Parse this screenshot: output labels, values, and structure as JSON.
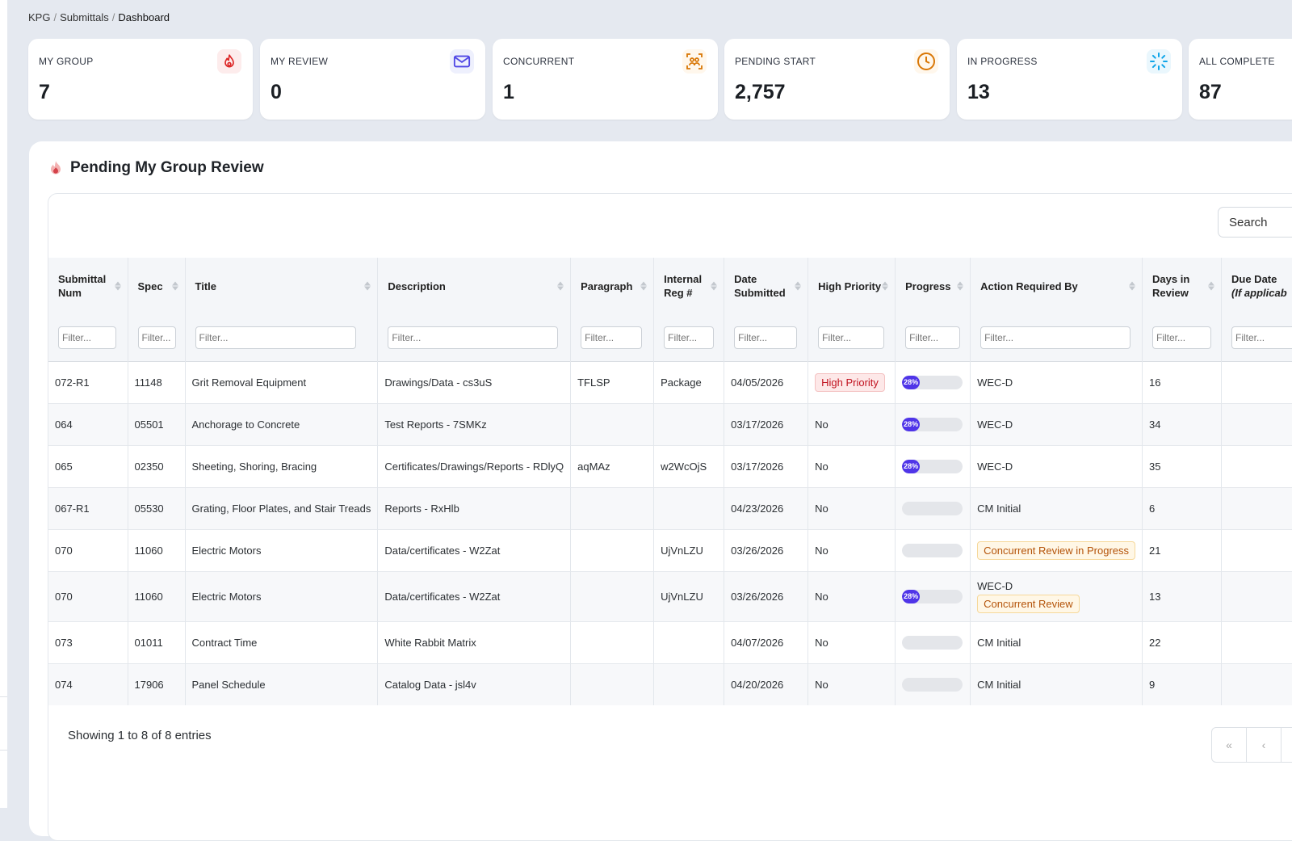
{
  "breadcrumb": [
    "KPG",
    "Submittals",
    "Dashboard"
  ],
  "stats": [
    {
      "label": "MY GROUP",
      "value": "7",
      "icon": "fire-icon",
      "color": "#dc2626"
    },
    {
      "label": "MY REVIEW",
      "value": "0",
      "icon": "envelope-icon",
      "color": "#4f46e5"
    },
    {
      "label": "CONCURRENT",
      "value": "1",
      "icon": "people-scan-icon",
      "color": "#d97706"
    },
    {
      "label": "PENDING START",
      "value": "2,757",
      "icon": "clock-icon",
      "color": "#d97706"
    },
    {
      "label": "IN PROGRESS",
      "value": "13",
      "icon": "spinner-icon",
      "color": "#0ea5e9"
    },
    {
      "label": "ALL COMPLETE",
      "value": "87",
      "icon": "",
      "color": ""
    }
  ],
  "panel": {
    "title": "Pending My Group Review",
    "title_icon": "fire-icon",
    "search_label": "Search"
  },
  "table": {
    "columns": [
      "Submittal Num",
      "Spec",
      "Title",
      "Description",
      "Paragraph",
      "Internal Reg #",
      "Date Submitted",
      "High Priority",
      "Progress",
      "Action Required By",
      "Days in Review",
      "Due Date",
      "(If applicab"
    ],
    "filter_placeholder": "Filter...",
    "rows": [
      {
        "num": "072-R1",
        "spec": "11148",
        "title": "Grit Removal Equipment",
        "description": "Drawings/Data - cs3uS",
        "paragraph": "TFLSP",
        "reg": "Package",
        "date": "04/05/2026",
        "priority": "High Priority",
        "priority_badge": true,
        "progress": 28,
        "progress_label": "28%",
        "action": "WEC-D",
        "action_badge": "",
        "days": "16"
      },
      {
        "num": "064",
        "spec": "05501",
        "title": "Anchorage to Concrete",
        "description": "Test Reports - 7SMKz",
        "paragraph": "",
        "reg": "",
        "date": "03/17/2026",
        "priority": "No",
        "priority_badge": false,
        "progress": 28,
        "progress_label": "28%",
        "action": "WEC-D",
        "action_badge": "",
        "days": "34"
      },
      {
        "num": "065",
        "spec": "02350",
        "title": "Sheeting, Shoring, Bracing",
        "description": "Certificates/Drawings/Reports - RDlyQ",
        "paragraph": "aqMAz",
        "reg": "w2WcOjS",
        "date": "03/17/2026",
        "priority": "No",
        "priority_badge": false,
        "progress": 28,
        "progress_label": "28%",
        "action": "WEC-D",
        "action_badge": "",
        "days": "35"
      },
      {
        "num": "067-R1",
        "spec": "05530",
        "title": "Grating, Floor Plates, and Stair Treads",
        "description": "Reports - RxHlb",
        "paragraph": "",
        "reg": "",
        "date": "04/23/2026",
        "priority": "No",
        "priority_badge": false,
        "progress": 0,
        "progress_label": "",
        "action": "CM Initial",
        "action_badge": "",
        "days": "6"
      },
      {
        "num": "070",
        "spec": "11060",
        "title": "Electric Motors",
        "description": "Data/certificates - W2Zat",
        "paragraph": "",
        "reg": "UjVnLZU",
        "date": "03/26/2026",
        "priority": "No",
        "priority_badge": false,
        "progress": 0,
        "progress_label": "",
        "action": "",
        "action_badge": "Concurrent Review in Progress",
        "days": "21"
      },
      {
        "num": "070",
        "spec": "11060",
        "title": "Electric Motors",
        "description": "Data/certificates - W2Zat",
        "paragraph": "",
        "reg": "UjVnLZU",
        "date": "03/26/2026",
        "priority": "No",
        "priority_badge": false,
        "progress": 28,
        "progress_label": "28%",
        "action": "WEC-D",
        "action_badge": "Concurrent Review",
        "days": "13"
      },
      {
        "num": "073",
        "spec": "01011",
        "title": "Contract Time",
        "description": "White Rabbit Matrix",
        "paragraph": "",
        "reg": "",
        "date": "04/07/2026",
        "priority": "No",
        "priority_badge": false,
        "progress": 0,
        "progress_label": "",
        "action": "CM Initial",
        "action_badge": "",
        "days": "22"
      },
      {
        "num": "074",
        "spec": "17906",
        "title": "Panel Schedule",
        "description": "Catalog Data - jsl4v",
        "paragraph": "",
        "reg": "",
        "date": "04/20/2026",
        "priority": "No",
        "priority_badge": false,
        "progress": 0,
        "progress_label": "",
        "action": "CM Initial",
        "action_badge": "",
        "days": "9"
      }
    ],
    "footer": "Showing 1 to 8 of 8 entries",
    "pager": [
      "«",
      "‹"
    ]
  }
}
